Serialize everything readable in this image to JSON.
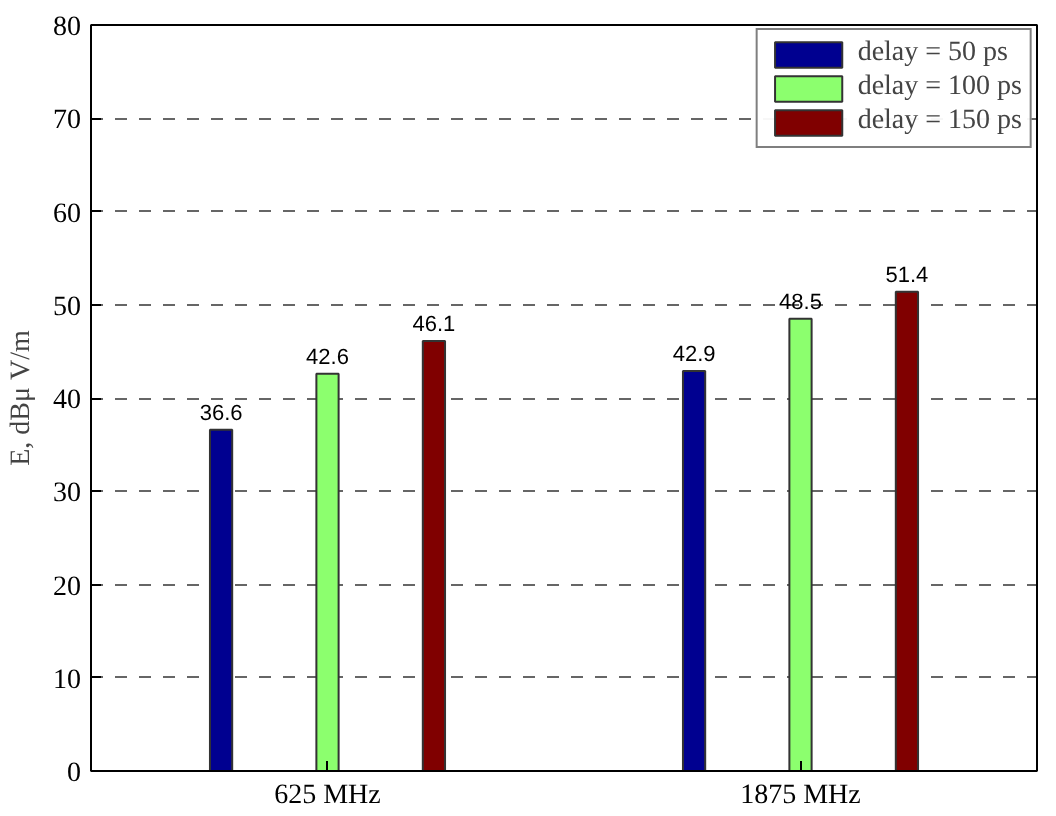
{
  "chart_data": {
    "type": "bar",
    "ylabel": "E, dBμ V/m",
    "categories": [
      "625 MHz",
      "1875 MHz"
    ],
    "series": [
      {
        "name": "delay = 50 ps",
        "color": "#000090",
        "values": [
          36.6,
          42.9
        ]
      },
      {
        "name": "delay = 100 ps",
        "color": "#8cff6e",
        "values": [
          42.6,
          48.5
        ]
      },
      {
        "name": "delay = 150 ps",
        "color": "#800000",
        "values": [
          46.1,
          51.4
        ]
      }
    ],
    "ylim": [
      0,
      80
    ],
    "yticks": [
      0,
      10,
      20,
      30,
      40,
      50,
      60,
      70,
      80
    ],
    "grid": "y",
    "legend": "top right",
    "data_labels": true
  }
}
